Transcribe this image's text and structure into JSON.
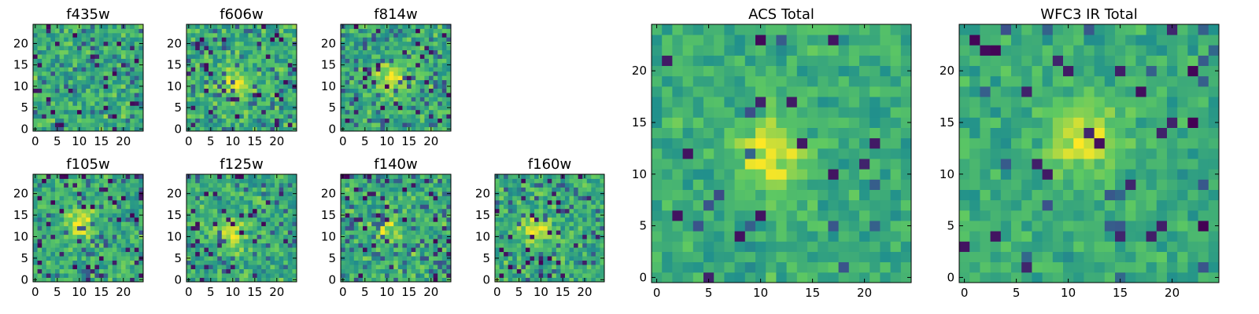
{
  "figure": {
    "colormap": "viridis",
    "colormap_stops": [
      "#440154",
      "#3b528b",
      "#21918c",
      "#5ec962",
      "#fde725"
    ]
  },
  "chart_data": [
    {
      "type": "heatmap",
      "title": "f435w",
      "grid_size": 25,
      "xlim": [
        0,
        24
      ],
      "ylim": [
        0,
        24
      ],
      "xticks": [
        0,
        5,
        10,
        15,
        20
      ],
      "yticks": [
        0,
        5,
        10,
        15,
        20
      ],
      "source_center": null,
      "source_strength": 0.0,
      "noise": 0.16,
      "dark_pixel_fraction": 0.05
    },
    {
      "type": "heatmap",
      "title": "f606w",
      "grid_size": 25,
      "xlim": [
        0,
        24
      ],
      "ylim": [
        0,
        24
      ],
      "xticks": [
        0,
        5,
        10,
        15,
        20
      ],
      "yticks": [
        0,
        5,
        10,
        15,
        20
      ],
      "source_center": [
        10.5,
        11
      ],
      "source_strength": 0.35,
      "noise": 0.16,
      "dark_pixel_fraction": 0.07
    },
    {
      "type": "heatmap",
      "title": "f814w",
      "grid_size": 25,
      "xlim": [
        0,
        24
      ],
      "ylim": [
        0,
        24
      ],
      "xticks": [
        0,
        5,
        10,
        15,
        20
      ],
      "yticks": [
        0,
        5,
        10,
        15,
        20
      ],
      "source_center": [
        11,
        12
      ],
      "source_strength": 0.35,
      "noise": 0.15,
      "dark_pixel_fraction": 0.06
    },
    {
      "type": "heatmap",
      "title": "f105w",
      "grid_size": 25,
      "xlim": [
        0,
        24
      ],
      "ylim": [
        0,
        24
      ],
      "xticks": [
        0,
        5,
        10,
        15,
        20
      ],
      "yticks": [
        0,
        5,
        10,
        15,
        20
      ],
      "source_center": [
        10,
        13
      ],
      "source_strength": 0.35,
      "noise": 0.14,
      "dark_pixel_fraction": 0.06
    },
    {
      "type": "heatmap",
      "title": "f125w",
      "grid_size": 25,
      "xlim": [
        0,
        24
      ],
      "ylim": [
        0,
        24
      ],
      "xticks": [
        0,
        5,
        10,
        15,
        20
      ],
      "yticks": [
        0,
        5,
        10,
        15,
        20
      ],
      "source_center": [
        10,
        11
      ],
      "source_strength": 0.3,
      "noise": 0.15,
      "dark_pixel_fraction": 0.06
    },
    {
      "type": "heatmap",
      "title": "f140w",
      "grid_size": 25,
      "xlim": [
        0,
        24
      ],
      "ylim": [
        0,
        24
      ],
      "xticks": [
        0,
        5,
        10,
        15,
        20
      ],
      "yticks": [
        0,
        5,
        10,
        15,
        20
      ],
      "source_center": [
        10,
        12
      ],
      "source_strength": 0.25,
      "noise": 0.16,
      "dark_pixel_fraction": 0.07
    },
    {
      "type": "heatmap",
      "title": "f160w",
      "grid_size": 25,
      "xlim": [
        0,
        24
      ],
      "ylim": [
        0,
        24
      ],
      "xticks": [
        0,
        5,
        10,
        15,
        20
      ],
      "yticks": [
        0,
        5,
        10,
        15,
        20
      ],
      "source_center": [
        9,
        12
      ],
      "source_strength": 0.3,
      "noise": 0.15,
      "dark_pixel_fraction": 0.06
    },
    {
      "type": "heatmap",
      "title": "ACS Total",
      "grid_size": 25,
      "xlim": [
        0,
        24
      ],
      "ylim": [
        0,
        24
      ],
      "xticks": [
        0,
        5,
        10,
        15,
        20
      ],
      "yticks": [
        0,
        5,
        10,
        15,
        20
      ],
      "source_center": [
        11,
        12
      ],
      "source_strength": 0.35,
      "noise": 0.11,
      "dark_pixel_fraction": 0.025
    },
    {
      "type": "heatmap",
      "title": "WFC3 IR Total",
      "grid_size": 25,
      "xlim": [
        0,
        24
      ],
      "ylim": [
        0,
        24
      ],
      "xticks": [
        0,
        5,
        10,
        15,
        20
      ],
      "yticks": [
        0,
        5,
        10,
        15,
        20
      ],
      "source_center": [
        11.5,
        13.5
      ],
      "source_strength": 0.35,
      "noise": 0.1,
      "dark_pixel_fraction": 0.03
    }
  ]
}
